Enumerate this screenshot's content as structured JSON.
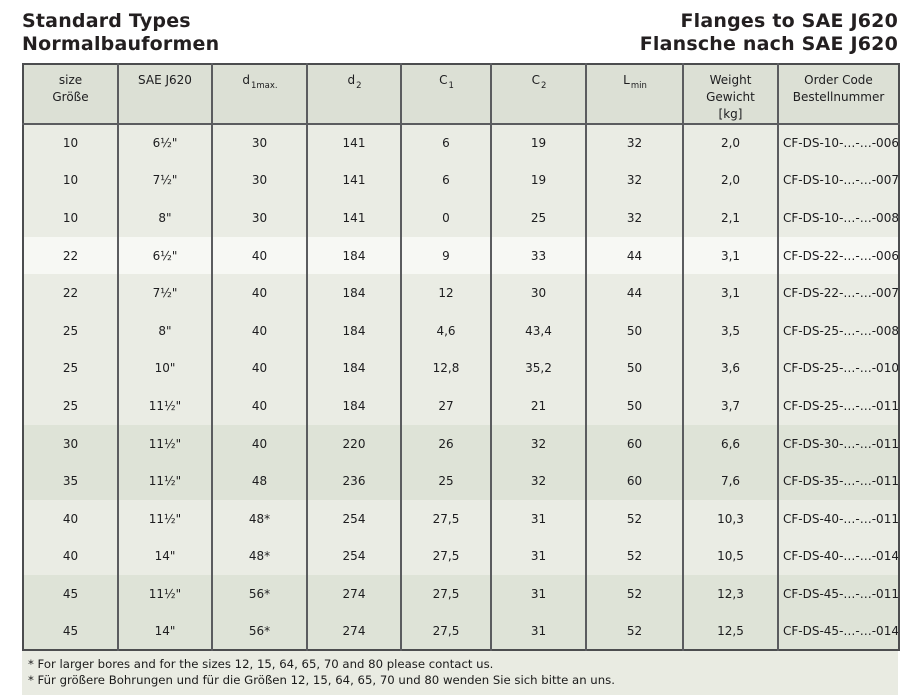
{
  "titles": {
    "left_line1": "Standard Types",
    "left_line2": "Normalbauformen",
    "right_line1": "Flanges to SAE J620",
    "right_line2": "Flansche nach SAE J620"
  },
  "colors": {
    "header_bg": "#dce0d5",
    "row_mid": "#eaece4",
    "row_white": "#f7f8f4",
    "row_dark": "#dee3d7",
    "footnote_bg": "#e9ebe2",
    "border": "#5b5c5f"
  },
  "table": {
    "headers": [
      {
        "lines": [
          "size",
          "Größe"
        ]
      },
      {
        "lines": [
          "SAE J620"
        ]
      },
      {
        "main": "d",
        "sub": "1max."
      },
      {
        "main": "d",
        "sub": "2"
      },
      {
        "main": "C",
        "sub": "1"
      },
      {
        "main": "C",
        "sub": "2"
      },
      {
        "main": "L",
        "sub": "min"
      },
      {
        "lines": [
          "Weight",
          "Gewicht",
          "[kg]"
        ]
      },
      {
        "lines": [
          "Order Code",
          "Bestellnummer"
        ]
      }
    ],
    "rows": [
      {
        "shade": "mid",
        "cells": [
          "10",
          "6½\"",
          "30",
          "141",
          "6",
          "19",
          "32",
          "2,0",
          "CF-DS-10-…-…-006"
        ]
      },
      {
        "shade": "mid",
        "cells": [
          "10",
          "7½\"",
          "30",
          "141",
          "6",
          "19",
          "32",
          "2,0",
          "CF-DS-10-…-…-007"
        ]
      },
      {
        "shade": "mid",
        "cells": [
          "10",
          "8\"",
          "30",
          "141",
          "0",
          "25",
          "32",
          "2,1",
          "CF-DS-10-…-…-008"
        ]
      },
      {
        "shade": "white",
        "cells": [
          "22",
          "6½\"",
          "40",
          "184",
          "9",
          "33",
          "44",
          "3,1",
          "CF-DS-22-…-…-006"
        ]
      },
      {
        "shade": "mid",
        "cells": [
          "22",
          "7½\"",
          "40",
          "184",
          "12",
          "30",
          "44",
          "3,1",
          "CF-DS-22-…-…-007"
        ]
      },
      {
        "shade": "mid",
        "cells": [
          "25",
          "8\"",
          "40",
          "184",
          "4,6",
          "43,4",
          "50",
          "3,5",
          "CF-DS-25-…-…-008"
        ]
      },
      {
        "shade": "mid",
        "cells": [
          "25",
          "10\"",
          "40",
          "184",
          "12,8",
          "35,2",
          "50",
          "3,6",
          "CF-DS-25-…-…-010"
        ]
      },
      {
        "shade": "mid",
        "cells": [
          "25",
          "11½\"",
          "40",
          "184",
          "27",
          "21",
          "50",
          "3,7",
          "CF-DS-25-…-…-011"
        ]
      },
      {
        "shade": "dark",
        "cells": [
          "30",
          "11½\"",
          "40",
          "220",
          "26",
          "32",
          "60",
          "6,6",
          "CF-DS-30-…-…-011"
        ]
      },
      {
        "shade": "dark",
        "cells": [
          "35",
          "11½\"",
          "48",
          "236",
          "25",
          "32",
          "60",
          "7,6",
          "CF-DS-35-…-…-011"
        ]
      },
      {
        "shade": "mid",
        "cells": [
          "40",
          "11½\"",
          "48*",
          "254",
          "27,5",
          "31",
          "52",
          "10,3",
          "CF-DS-40-…-…-011"
        ]
      },
      {
        "shade": "mid",
        "cells": [
          "40",
          "14\"",
          "48*",
          "254",
          "27,5",
          "31",
          "52",
          "10,5",
          "CF-DS-40-…-…-014"
        ]
      },
      {
        "shade": "dark",
        "cells": [
          "45",
          "11½\"",
          "56*",
          "274",
          "27,5",
          "31",
          "52",
          "12,3",
          "CF-DS-45-…-…-011"
        ]
      },
      {
        "shade": "dark",
        "cells": [
          "45",
          "14\"",
          "56*",
          "274",
          "27,5",
          "31",
          "52",
          "12,5",
          "CF-DS-45-…-…-014"
        ]
      }
    ]
  },
  "footnotes": [
    "* For larger bores and for the sizes 12, 15, 64, 65, 70 and 80 please contact us.",
    "* Für größere Bohrungen und für die Größen 12, 15, 64, 65, 70 und 80 wenden Sie sich bitte an uns."
  ]
}
